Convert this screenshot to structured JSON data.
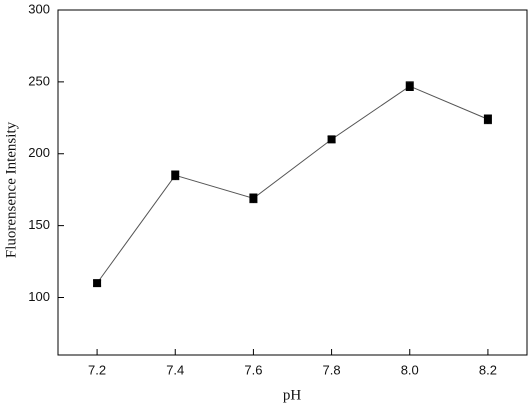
{
  "chart_data": {
    "type": "line",
    "x_label": "pH",
    "y_label": "Fluorensence Intensity",
    "x": [
      7.2,
      7.4,
      7.6,
      7.8,
      8.0,
      8.2
    ],
    "series": [
      {
        "values": [
          110,
          185,
          169,
          210,
          247,
          224
        ],
        "errors": [
          2,
          3,
          3,
          2,
          3,
          3
        ],
        "color": "#000000"
      }
    ],
    "line_color": "#555555",
    "xlim": [
      7.1,
      8.3
    ],
    "xticks": [
      7.2,
      7.4,
      7.6,
      7.8,
      {
        "value": 8,
        "label": "8.0"
      },
      8.2
    ],
    "ylim": [
      60,
      300
    ],
    "yticks": [
      100,
      150,
      200,
      250,
      300
    ]
  }
}
